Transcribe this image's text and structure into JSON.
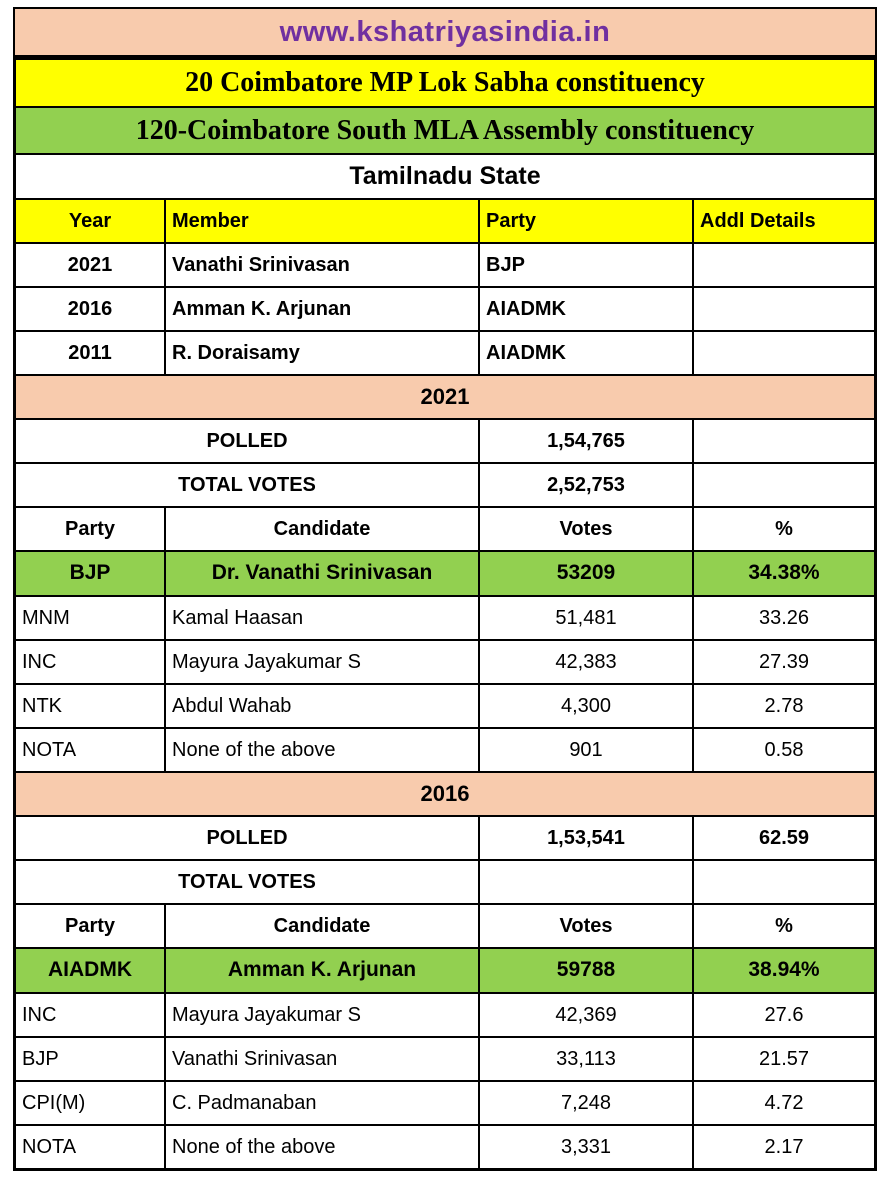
{
  "site": {
    "url_label": "www.kshatriyasindia.in"
  },
  "banners": {
    "mp_constituency": "20 Coimbatore MP Lok Sabha constituency",
    "mla_constituency": "120-Coimbatore South MLA Assembly constituency",
    "state": "Tamilnadu State"
  },
  "colors": {
    "site_banner_bg": "#F8CBAD",
    "site_url_text": "#7030A0",
    "mp_banner_bg": "#FFFF00",
    "mla_banner_bg": "#92D050",
    "winner_row_bg": "#92D050",
    "year_banner_bg": "#F8CBAD",
    "members_header_bg": "#FFFF00",
    "border": "#000000"
  },
  "members": {
    "headers": {
      "year": "Year",
      "member": "Member",
      "party": "Party",
      "addl": "Addl Details"
    },
    "rows": [
      {
        "year": "2021",
        "member": "Vanathi Srinivasan",
        "party": "BJP",
        "addl": ""
      },
      {
        "year": "2016",
        "member": "Amman K. Arjunan",
        "party": "AIADMK",
        "addl": ""
      },
      {
        "year": "2011",
        "member": "R. Doraisamy",
        "party": "AIADMK",
        "addl": ""
      }
    ]
  },
  "e2021": {
    "title": "2021",
    "polled": {
      "label": "POLLED",
      "value": "1,54,765",
      "pct": ""
    },
    "total": {
      "label": "TOTAL VOTES",
      "value": "2,52,753",
      "pct": ""
    },
    "headers": {
      "party": "Party",
      "candidate": "Candidate",
      "votes": "Votes",
      "pct": "%"
    },
    "winner": {
      "party": "BJP",
      "candidate": "Dr. Vanathi Srinivasan",
      "votes": "53209",
      "pct": "34.38%"
    },
    "rows": [
      {
        "party": "MNM",
        "candidate": "Kamal Haasan",
        "votes": "51,481",
        "pct": "33.26"
      },
      {
        "party": "INC",
        "candidate": "Mayura Jayakumar S",
        "votes": "42,383",
        "pct": "27.39"
      },
      {
        "party": "NTK",
        "candidate": "Abdul Wahab",
        "votes": "4,300",
        "pct": "2.78"
      },
      {
        "party": "NOTA",
        "candidate": "None of the above",
        "votes": "901",
        "pct": "0.58"
      }
    ]
  },
  "e2016": {
    "title": "2016",
    "polled": {
      "label": "POLLED",
      "value": "1,53,541",
      "pct": "62.59"
    },
    "total": {
      "label": "TOTAL VOTES",
      "value": "",
      "pct": ""
    },
    "headers": {
      "party": "Party",
      "candidate": "Candidate",
      "votes": "Votes",
      "pct": "%"
    },
    "winner": {
      "party": "AIADMK",
      "candidate": "Amman K. Arjunan",
      "votes": "59788",
      "pct": "38.94%"
    },
    "rows": [
      {
        "party": "INC",
        "candidate": "Mayura Jayakumar S",
        "votes": "42,369",
        "pct": "27.6"
      },
      {
        "party": "BJP",
        "candidate": "Vanathi Srinivasan",
        "votes": "33,113",
        "pct": "21.57"
      },
      {
        "party": "CPI(M)",
        "candidate": "C. Padmanaban",
        "votes": "7,248",
        "pct": "4.72"
      },
      {
        "party": "NOTA",
        "candidate": "None of the above",
        "votes": "3,331",
        "pct": "2.17"
      }
    ]
  }
}
